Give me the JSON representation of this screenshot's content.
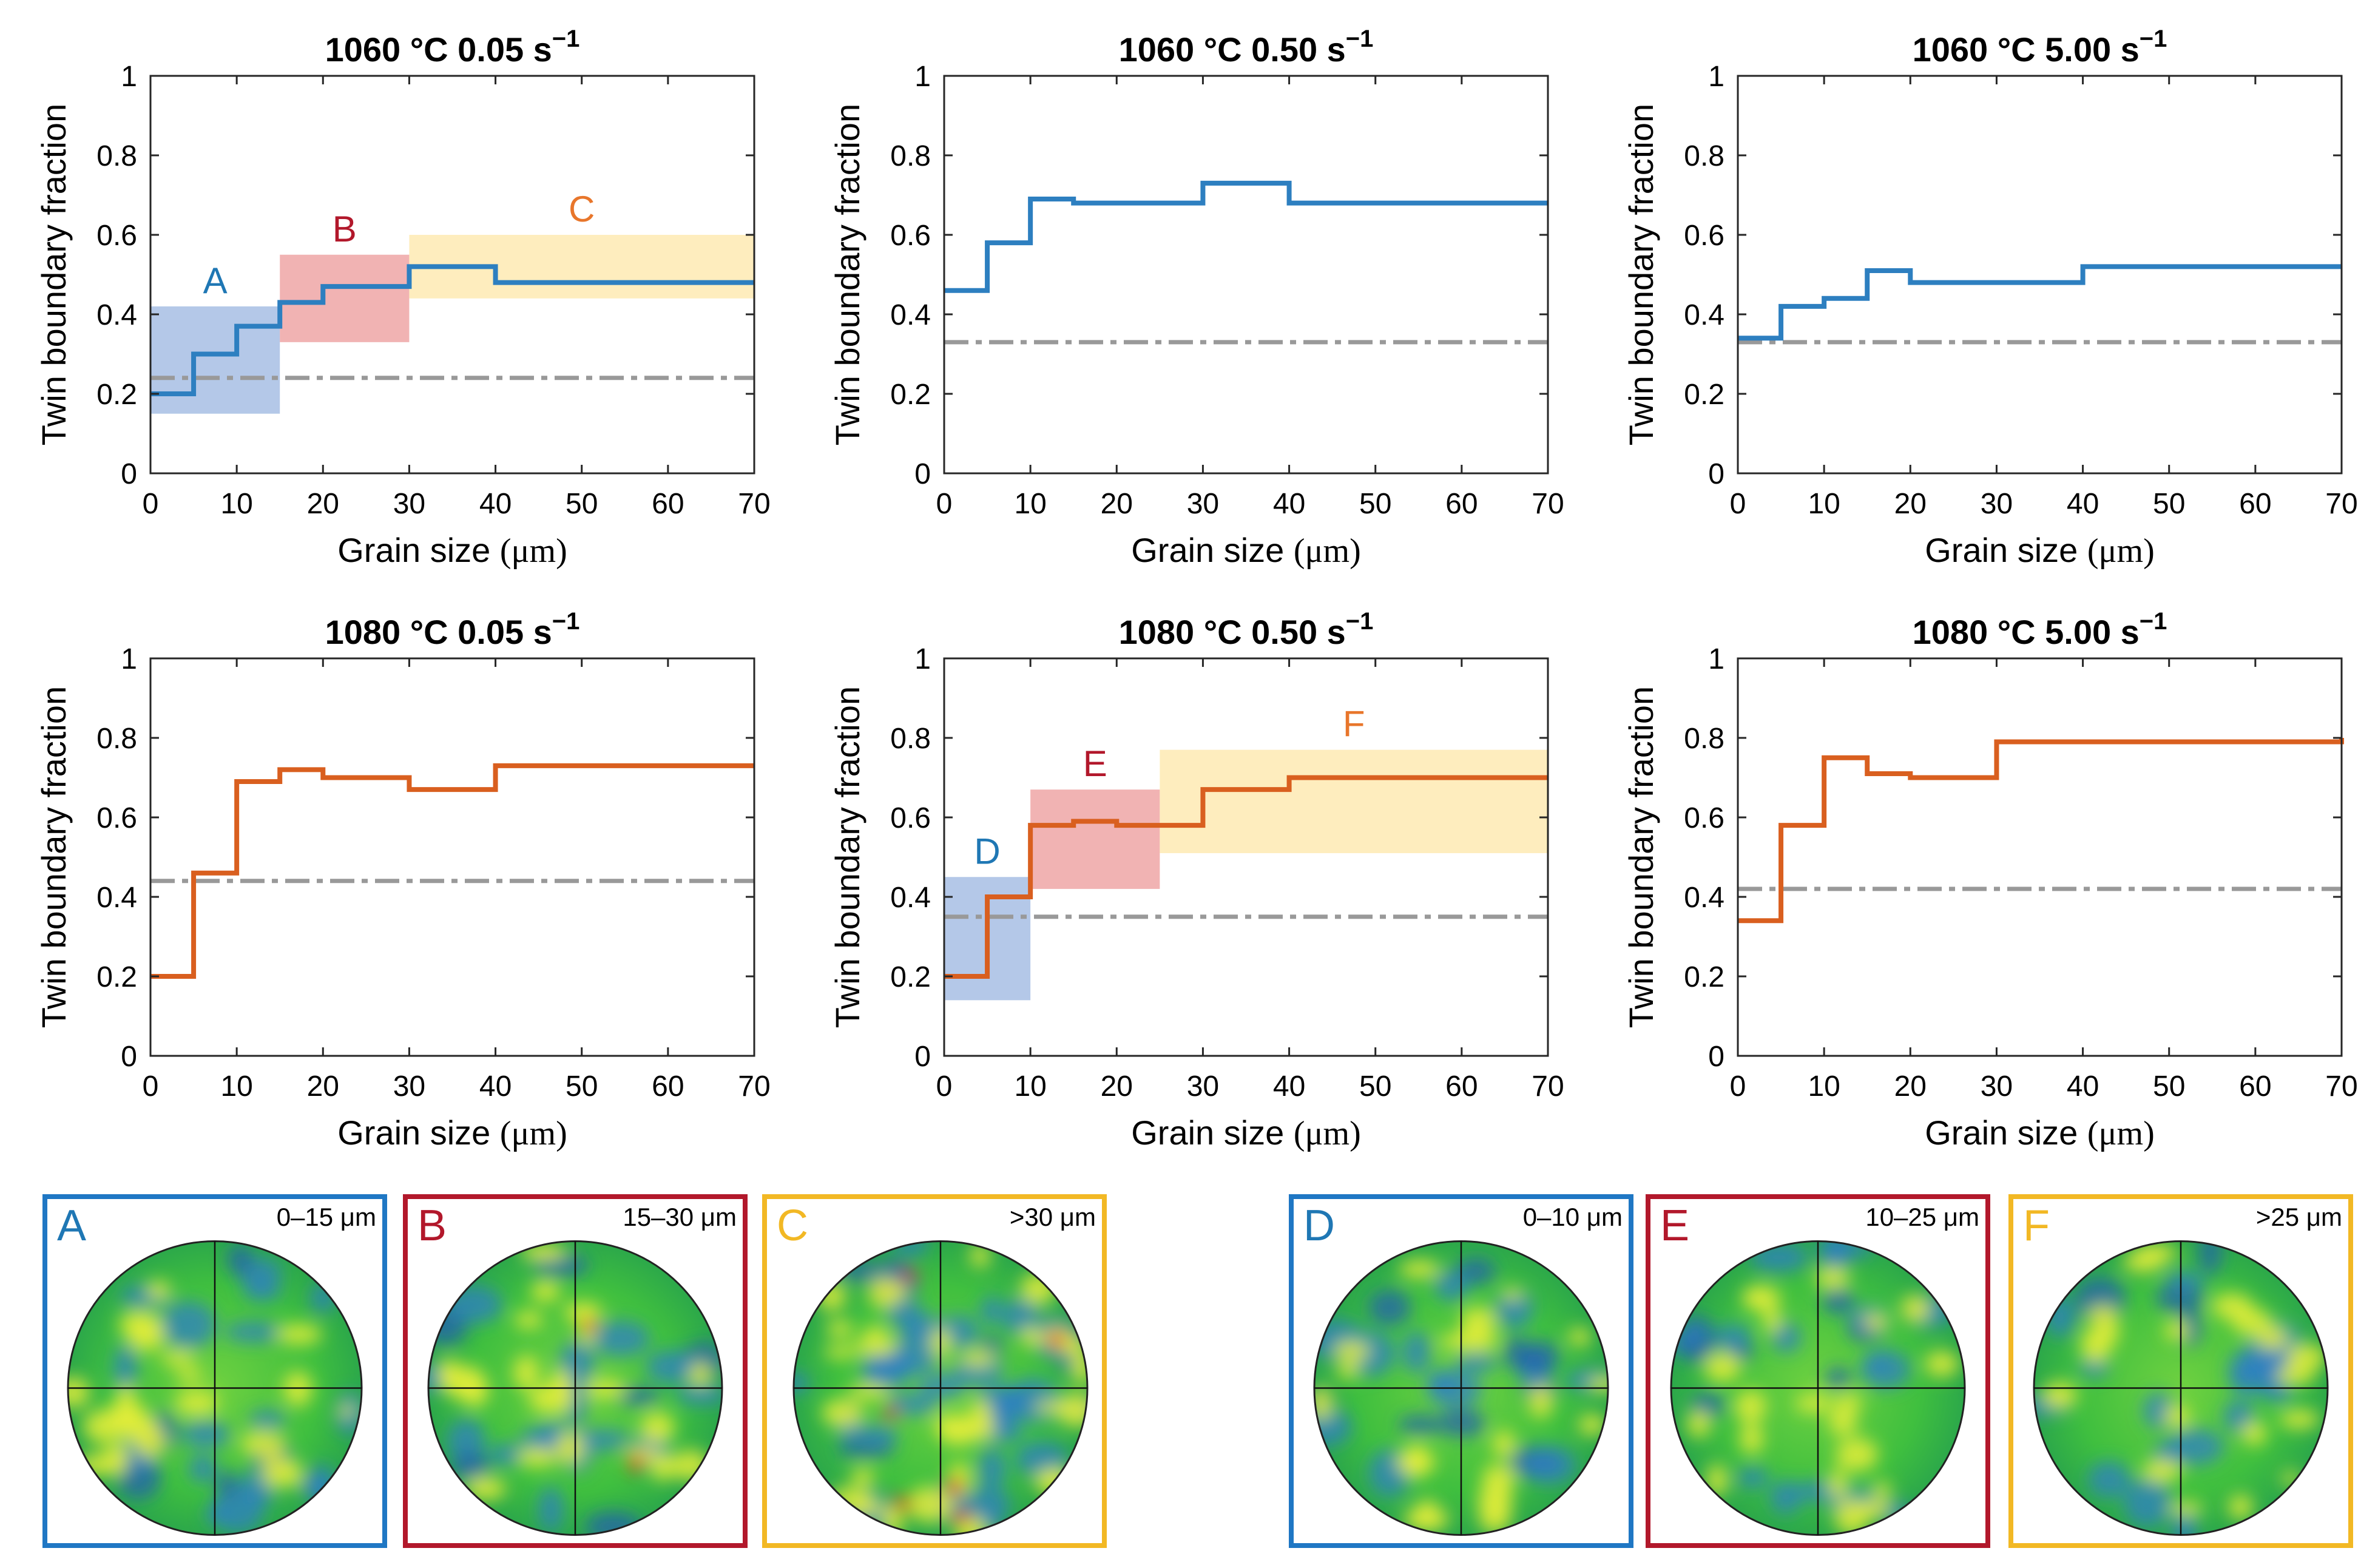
{
  "colors": {
    "blue": "#1f77b4",
    "red": "#b2182b",
    "orange": "#e8762b",
    "series_blue": "#2d7fc0",
    "series_orange": "#d95f1f",
    "dash_gray": "#999999",
    "region_blue": "#9bb6e0",
    "region_red": "#ec9a9a",
    "region_yellow": "#fde7a8",
    "box_blue": "#1f77c4",
    "box_red": "#b2182b",
    "box_yellow": "#f2b824"
  },
  "chart_data": [
    {
      "type": "line",
      "title": "1060 °C 0.05 s",
      "title_sup": "−1",
      "xlabel": "Grain size",
      "xunit": "μm",
      "ylabel": "Twin boundary fraction",
      "xlim": [
        0,
        70
      ],
      "ylim": [
        0,
        1
      ],
      "xticks": [
        "0",
        "10",
        "20",
        "30",
        "40",
        "50",
        "60",
        "70"
      ],
      "yticks": [
        "0",
        "0.2",
        "0.4",
        "0.6",
        "0.8",
        "1"
      ],
      "series_color": "blue",
      "steps": [
        [
          0,
          0.2
        ],
        [
          5,
          0.3
        ],
        [
          10,
          0.37
        ],
        [
          15,
          0.43
        ],
        [
          20,
          0.47
        ],
        [
          30,
          0.52
        ],
        [
          40,
          0.48
        ],
        [
          70,
          0.48
        ]
      ],
      "dashed_y": 0.24,
      "regions": [
        {
          "label": "A",
          "x0": 0,
          "x1": 15,
          "y0": 0.15,
          "y1": 0.42,
          "fill": "region_blue",
          "text": "blue"
        },
        {
          "label": "B",
          "x0": 15,
          "x1": 30,
          "y0": 0.33,
          "y1": 0.55,
          "fill": "region_red",
          "text": "red"
        },
        {
          "label": "C",
          "x0": 30,
          "x1": 70,
          "y0": 0.44,
          "y1": 0.6,
          "fill": "region_yellow",
          "text": "orange"
        }
      ]
    },
    {
      "type": "line",
      "title": "1060 °C 0.50 s",
      "title_sup": "−1",
      "xlabel": "Grain size",
      "xunit": "μm",
      "ylabel": "Twin boundary fraction",
      "xlim": [
        0,
        70
      ],
      "ylim": [
        0,
        1
      ],
      "xticks": [
        "0",
        "10",
        "20",
        "30",
        "40",
        "50",
        "60",
        "70"
      ],
      "yticks": [
        "0",
        "0.2",
        "0.4",
        "0.6",
        "0.8",
        "1"
      ],
      "series_color": "blue",
      "steps": [
        [
          0,
          0.46
        ],
        [
          5,
          0.58
        ],
        [
          10,
          0.69
        ],
        [
          15,
          0.68
        ],
        [
          20,
          0.68
        ],
        [
          30,
          0.73
        ],
        [
          40,
          0.68
        ],
        [
          70,
          0.68
        ]
      ],
      "dashed_y": 0.33,
      "regions": []
    },
    {
      "type": "line",
      "title": "1060 °C 5.00 s",
      "title_sup": "−1",
      "xlabel": "Grain size",
      "xunit": "μm",
      "ylabel": "Twin boundary fraction",
      "xlim": [
        0,
        70
      ],
      "ylim": [
        0,
        1
      ],
      "xticks": [
        "0",
        "10",
        "20",
        "30",
        "40",
        "50",
        "60",
        "70"
      ],
      "yticks": [
        "0",
        "0.2",
        "0.4",
        "0.6",
        "0.8",
        "1"
      ],
      "series_color": "blue",
      "steps": [
        [
          0,
          0.34
        ],
        [
          5,
          0.42
        ],
        [
          10,
          0.44
        ],
        [
          15,
          0.51
        ],
        [
          20,
          0.48
        ],
        [
          30,
          0.48
        ],
        [
          40,
          0.52
        ],
        [
          70,
          0.52
        ]
      ],
      "dashed_y": 0.33,
      "regions": []
    },
    {
      "type": "line",
      "title": "1080 °C 0.05 s",
      "title_sup": "−1",
      "xlabel": "Grain size",
      "xunit": "μm",
      "ylabel": "Twin boundary fraction",
      "xlim": [
        0,
        70
      ],
      "ylim": [
        0,
        1
      ],
      "xticks": [
        "0",
        "10",
        "20",
        "30",
        "40",
        "50",
        "60",
        "70"
      ],
      "yticks": [
        "0",
        "0.2",
        "0.4",
        "0.6",
        "0.8",
        "1"
      ],
      "series_color": "orange",
      "steps": [
        [
          0,
          0.2
        ],
        [
          5,
          0.46
        ],
        [
          10,
          0.69
        ],
        [
          15,
          0.72
        ],
        [
          20,
          0.7
        ],
        [
          30,
          0.67
        ],
        [
          40,
          0.73
        ],
        [
          70,
          0.73
        ]
      ],
      "dashed_y": 0.44,
      "regions": []
    },
    {
      "type": "line",
      "title": "1080 °C 0.50 s",
      "title_sup": "−1",
      "xlabel": "Grain size",
      "xunit": "μm",
      "ylabel": "Twin boundary fraction",
      "xlim": [
        0,
        70
      ],
      "ylim": [
        0,
        1
      ],
      "xticks": [
        "0",
        "10",
        "20",
        "30",
        "40",
        "50",
        "60",
        "70"
      ],
      "yticks": [
        "0",
        "0.2",
        "0.4",
        "0.6",
        "0.8",
        "1"
      ],
      "series_color": "orange",
      "steps": [
        [
          0,
          0.2
        ],
        [
          5,
          0.4
        ],
        [
          10,
          0.58
        ],
        [
          15,
          0.59
        ],
        [
          20,
          0.58
        ],
        [
          25,
          0.58
        ],
        [
          30,
          0.67
        ],
        [
          40,
          0.7
        ],
        [
          70,
          0.7
        ]
      ],
      "dashed_y": 0.35,
      "regions": [
        {
          "label": "D",
          "x0": 0,
          "x1": 10,
          "y0": 0.14,
          "y1": 0.45,
          "fill": "region_blue",
          "text": "blue"
        },
        {
          "label": "E",
          "x0": 10,
          "x1": 25,
          "y0": 0.42,
          "y1": 0.67,
          "fill": "region_red",
          "text": "red"
        },
        {
          "label": "F",
          "x0": 25,
          "x1": 70,
          "y0": 0.51,
          "y1": 0.77,
          "fill": "region_yellow",
          "text": "orange"
        }
      ]
    },
    {
      "type": "line",
      "title": "1080 °C 5.00 s",
      "title_sup": "−1",
      "xlabel": "Grain size",
      "xunit": "μm",
      "ylabel": "Twin boundary fraction",
      "xlim": [
        0,
        70
      ],
      "ylim": [
        0,
        1
      ],
      "xticks": [
        "0",
        "10",
        "20",
        "30",
        "40",
        "50",
        "60",
        "70"
      ],
      "yticks": [
        "0",
        "0.2",
        "0.4",
        "0.6",
        "0.8",
        "1"
      ],
      "series_color": "orange",
      "steps": [
        [
          0,
          0.34
        ],
        [
          5,
          0.58
        ],
        [
          10,
          0.75
        ],
        [
          15,
          0.71
        ],
        [
          20,
          0.7
        ],
        [
          30,
          0.79
        ],
        [
          40,
          0.79
        ],
        [
          70,
          0.8
        ]
      ],
      "dashed_y": 0.42,
      "regions": []
    }
  ],
  "pole_figures": [
    {
      "letter": "A",
      "range": "0–15 μm",
      "color": "box_blue",
      "letter_color": "blue"
    },
    {
      "letter": "B",
      "range": "15–30 μm",
      "color": "box_red",
      "letter_color": "red"
    },
    {
      "letter": "C",
      "range": ">30 μm",
      "color": "box_yellow",
      "letter_color": "box_yellow"
    },
    {
      "letter": "D",
      "range": "0–10 μm",
      "color": "box_blue",
      "letter_color": "blue"
    },
    {
      "letter": "E",
      "range": "10–25 μm",
      "color": "box_red",
      "letter_color": "red"
    },
    {
      "letter": "F",
      "range": ">25 μm",
      "color": "box_yellow",
      "letter_color": "box_yellow"
    }
  ]
}
